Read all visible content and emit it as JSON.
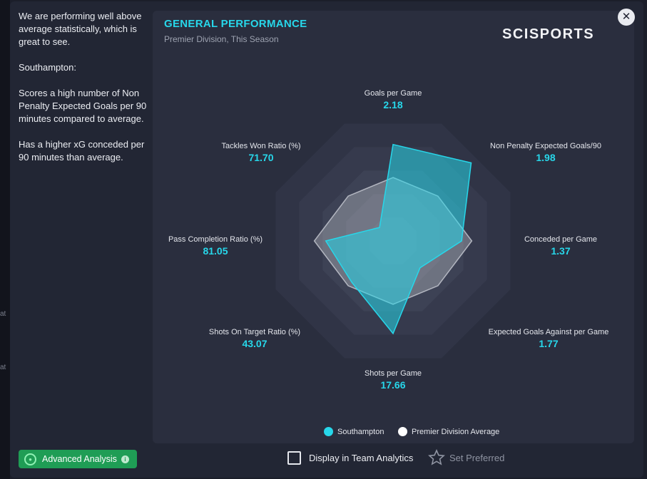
{
  "background": {
    "edge_text_1": "at",
    "edge_text_2": "at"
  },
  "summary": {
    "paragraphs": [
      "We are performing well above average statistically, which is great to see.",
      "Southampton:",
      "Scores a high number of Non Penalty Expected Goals per 90 minutes compared to average.",
      "Has a higher xG conceded per 90 minutes than average."
    ]
  },
  "panel": {
    "title": "GENERAL PERFORMANCE",
    "subtitle": "Premier Division, This Season",
    "logo": "SCISPORTS"
  },
  "close_icon": "close-icon",
  "chart_data": {
    "type": "radar",
    "axes": [
      {
        "name": "Goals per Game",
        "value_label": "2.18"
      },
      {
        "name": "Non Penalty Expected Goals/90",
        "value_label": "1.98"
      },
      {
        "name": "Conceded per Game",
        "value_label": "1.37"
      },
      {
        "name": "Expected Goals Against per Game",
        "value_label": "1.77"
      },
      {
        "name": "Shots per Game",
        "value_label": "17.66"
      },
      {
        "name": "Shots On Target Ratio (%)",
        "value_label": "43.07"
      },
      {
        "name": "Pass Completion Ratio (%)",
        "value_label": "81.05"
      },
      {
        "name": "Tackles Won Ratio (%)",
        "value_label": "71.70"
      }
    ],
    "rings": 5,
    "series": [
      {
        "name": "Southampton",
        "color": "#27d7ea",
        "normalized": [
          0.76,
          0.87,
          0.54,
          0.3,
          0.73,
          0.46,
          0.53,
          0.15
        ]
      },
      {
        "name": "Premier Division Average",
        "color": "#c8cad2",
        "normalized": [
          0.5,
          0.5,
          0.62,
          0.5,
          0.5,
          0.5,
          0.62,
          0.5
        ]
      }
    ],
    "legend_position": "bottom"
  },
  "footer": {
    "advanced_analysis_label": "Advanced Analysis",
    "display_team_analytics_label": "Display in Team Analytics",
    "display_team_analytics_checked": false,
    "set_preferred_label": "Set Preferred"
  }
}
